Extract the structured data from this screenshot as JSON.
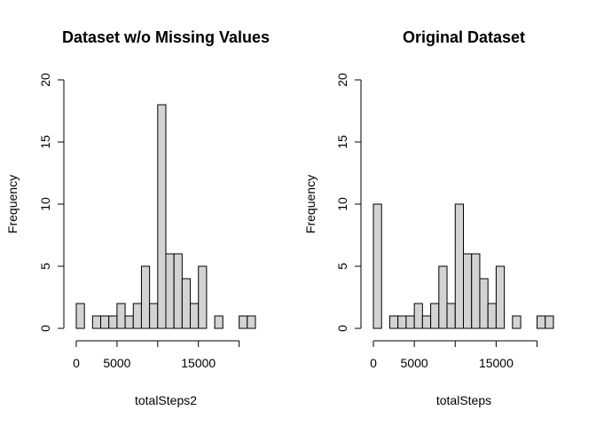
{
  "colors": {
    "bar_fill": "#d3d3d3",
    "bar_stroke": "#000000",
    "background": "#ffffff"
  },
  "chart_data": [
    {
      "type": "bar",
      "title": "Dataset w/o Missing Values",
      "xlabel": "totalSteps2",
      "ylabel": "Frequency",
      "bin_width": 1000,
      "bin_starts": [
        0,
        1000,
        2000,
        3000,
        4000,
        5000,
        6000,
        7000,
        8000,
        9000,
        10000,
        11000,
        12000,
        13000,
        14000,
        15000,
        16000,
        17000,
        18000,
        19000,
        20000,
        21000
      ],
      "values": [
        2,
        0,
        1,
        1,
        1,
        2,
        1,
        2,
        5,
        2,
        18,
        6,
        6,
        4,
        2,
        5,
        0,
        1,
        0,
        0,
        1,
        1
      ],
      "xlim": [
        0,
        22000
      ],
      "ylim": [
        0,
        20
      ],
      "x_ticks": [
        0,
        5000,
        15000
      ],
      "y_ticks": [
        0,
        5,
        10,
        15,
        20
      ],
      "grid": false
    },
    {
      "type": "bar",
      "title": "Original Dataset",
      "xlabel": "totalSteps",
      "ylabel": "Frequency",
      "bin_width": 1000,
      "bin_starts": [
        0,
        1000,
        2000,
        3000,
        4000,
        5000,
        6000,
        7000,
        8000,
        9000,
        10000,
        11000,
        12000,
        13000,
        14000,
        15000,
        16000,
        17000,
        18000,
        19000,
        20000,
        21000
      ],
      "values": [
        10,
        0,
        1,
        1,
        1,
        2,
        1,
        2,
        5,
        2,
        10,
        6,
        6,
        4,
        2,
        5,
        0,
        1,
        0,
        0,
        1,
        1
      ],
      "xlim": [
        0,
        22000
      ],
      "ylim": [
        0,
        20
      ],
      "x_ticks": [
        0,
        5000,
        15000
      ],
      "y_ticks": [
        0,
        5,
        10,
        15,
        20
      ],
      "grid": false
    }
  ]
}
